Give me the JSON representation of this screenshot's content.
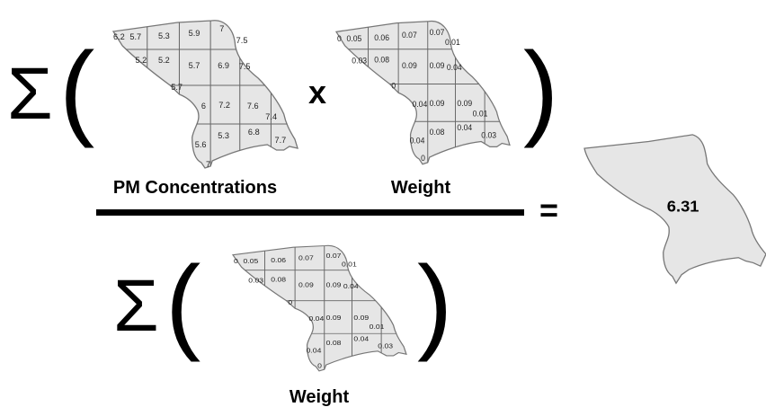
{
  "symbols": {
    "sum": "Σ",
    "open_paren": "(",
    "close_paren": ")",
    "times": "x",
    "equals": "="
  },
  "maps": {
    "pm": {
      "caption": "PM Concentrations",
      "cells": [
        "6.2",
        "5.7",
        "5.3",
        "5.9",
        "7",
        "7.5",
        "5.2",
        "5.2",
        "5.7",
        "6.9",
        "7.5",
        "5.7",
        "6",
        "7.2",
        "7.6",
        "7.4",
        "5.6",
        "5.3",
        "6.8",
        "7.7",
        "7"
      ]
    },
    "weight_top": {
      "caption": "Weight",
      "cells": [
        "0",
        "0.05",
        "0.06",
        "0.07",
        "0.07",
        "0.01",
        "0.03",
        "0.08",
        "0.09",
        "0.09",
        "0.04",
        "0",
        "0.04",
        "0.09",
        "0.09",
        "0.01",
        "0.04",
        "0.08",
        "0.04",
        "0.03",
        "0"
      ]
    },
    "weight_bottom": {
      "caption": "Weight",
      "cells": [
        "0",
        "0.05",
        "0.06",
        "0.07",
        "0.07",
        "0.01",
        "0.03",
        "0.08",
        "0.09",
        "0.09",
        "0.04",
        "0",
        "0.04",
        "0.09",
        "0.09",
        "0.01",
        "0.04",
        "0.08",
        "0.04",
        "0.03",
        "0"
      ]
    }
  },
  "result": {
    "value": "6.31"
  }
}
